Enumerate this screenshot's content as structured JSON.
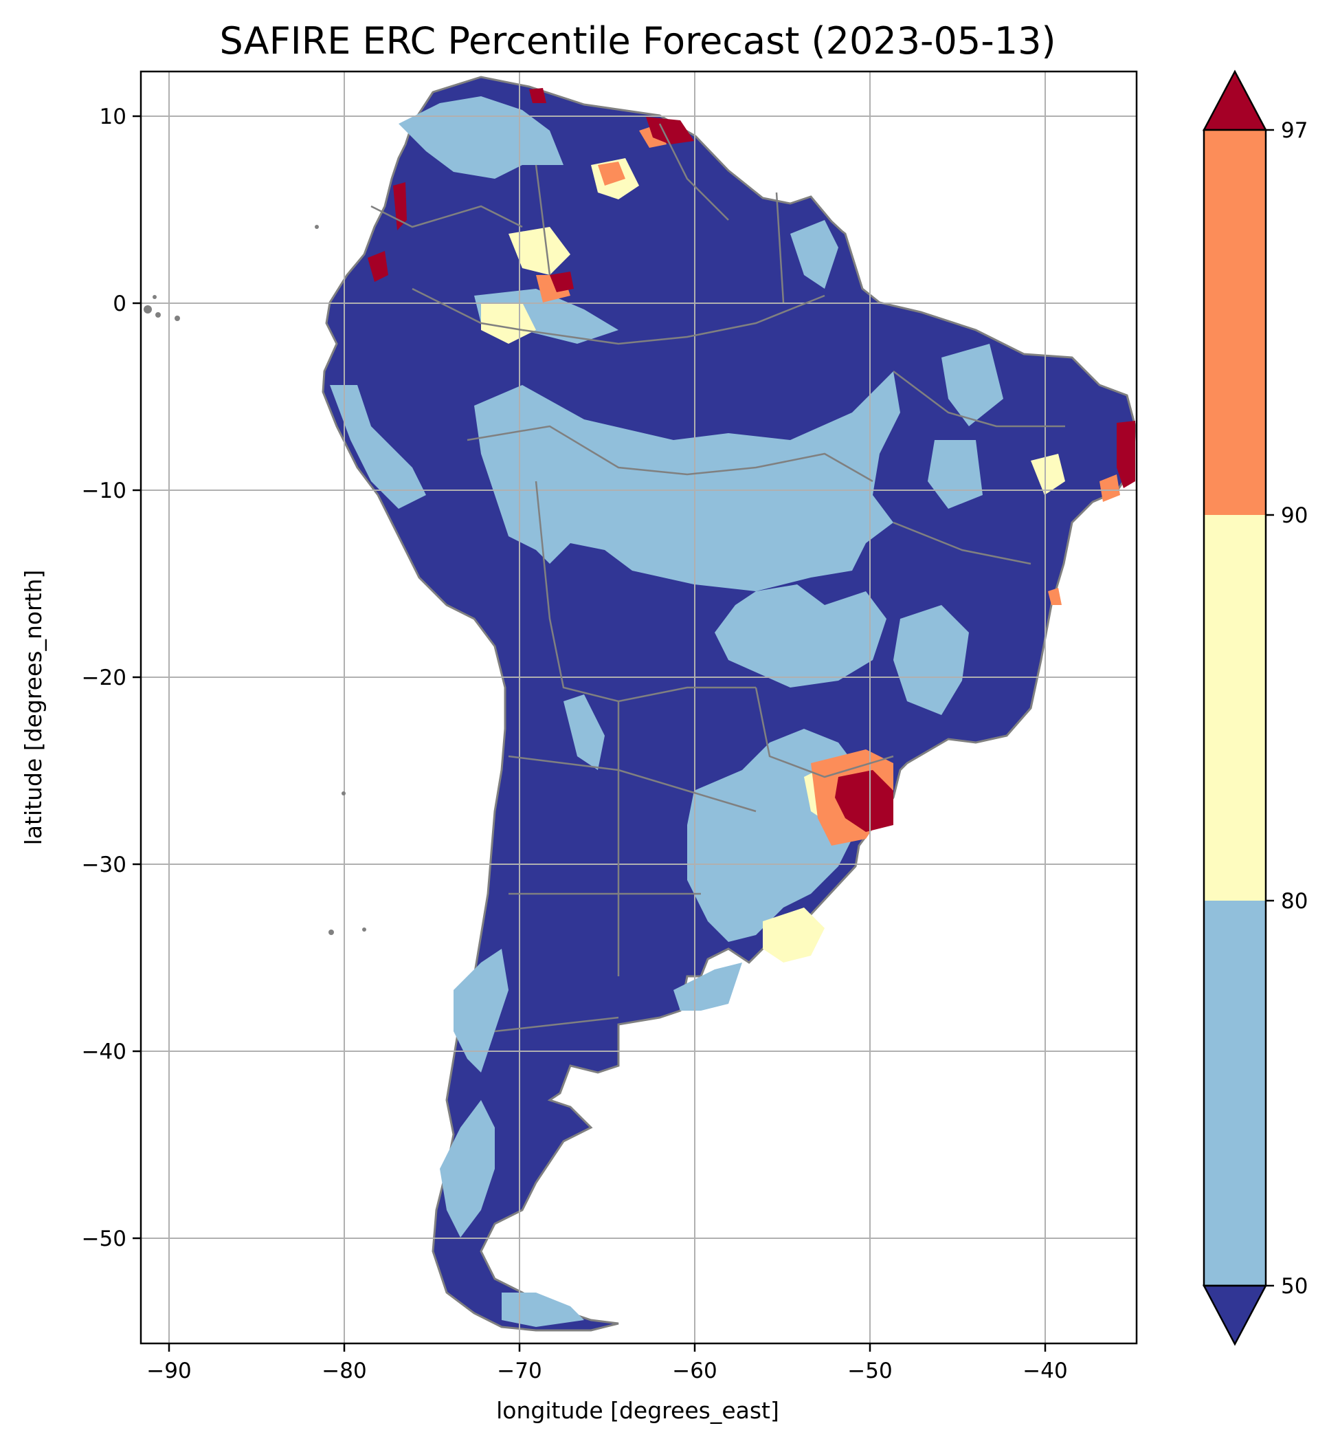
{
  "title": "SAFIRE ERC Percentile Forecast (2023-05-13)",
  "xlabel": "longitude [degrees_east]",
  "ylabel": "latitude [degrees_north]",
  "x_ticks": [
    "−90",
    "−80",
    "−70",
    "−60",
    "−50",
    "−40"
  ],
  "y_ticks": [
    "10",
    "0",
    "−10",
    "−20",
    "−30",
    "−40",
    "−50"
  ],
  "colorbar": {
    "ticks": [
      "97",
      "90",
      "80",
      "50"
    ],
    "colors": {
      "below_50": "#313695",
      "50_80": "#91bfdb",
      "80_90": "#fefcbf",
      "90_97": "#fc8d59",
      "above_97": "#a50026"
    }
  },
  "chart_data": {
    "type": "heatmap",
    "title": "SAFIRE ERC Percentile Forecast (2023-05-13)",
    "xlabel": "longitude [degrees_east]",
    "ylabel": "latitude [degrees_north]",
    "xlim": [
      -91.5,
      -35
    ],
    "ylim": [
      -55.8,
      12.2
    ],
    "grid": true,
    "levels": [
      50,
      80,
      90,
      97
    ],
    "extend": "both",
    "legend": "colorbar-right",
    "boundary_color": "#808080",
    "hotspots": [
      {
        "label": "above_97",
        "lon": -50.5,
        "lat": -26.8
      },
      {
        "label": "above_97",
        "lon": -36,
        "lat": -8
      },
      {
        "label": "above_97",
        "lon": -76.8,
        "lat": 4.5
      },
      {
        "label": "above_97",
        "lon": -62,
        "lat": 9.5
      },
      {
        "label": "90_97",
        "lon": -66,
        "lat": 7
      },
      {
        "label": "90_97",
        "lon": -67,
        "lat": 1
      }
    ]
  }
}
